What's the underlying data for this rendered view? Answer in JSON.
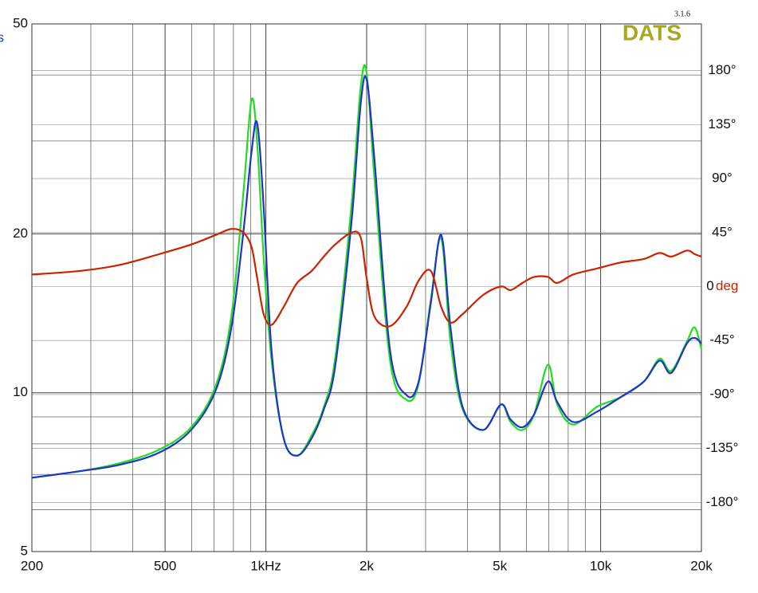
{
  "chart_data": {
    "type": "line",
    "brand": "DATS",
    "version": "3.1.6",
    "y_label": "s",
    "y2_label": "deg",
    "y2_label_color": "#cc2200",
    "y_label_color": "#2233cc",
    "brand_color": "#a8a820",
    "xscale": "log",
    "yscale": "log",
    "grid": true,
    "xlim": [
      200,
      20000
    ],
    "xticks": [
      200,
      500,
      {
        "value": 1000,
        "label": "1kHz"
      },
      {
        "value": 2000,
        "label": "2k"
      },
      {
        "value": 5000,
        "label": "5k"
      },
      {
        "value": 10000,
        "label": "10k"
      },
      {
        "value": 20000,
        "label": "20k"
      }
    ],
    "x_minor_grid": [
      300,
      400,
      600,
      700,
      800,
      900,
      3000,
      4000,
      6000,
      7000,
      8000,
      9000
    ],
    "ylim": [
      5,
      50
    ],
    "yticks": [
      5,
      10,
      20,
      50
    ],
    "y_minor_grid": [
      6,
      7,
      8,
      9,
      30,
      40
    ],
    "y2lim": [
      -221,
      219
    ],
    "y2ticks": [
      {
        "value": 180,
        "label": "180°"
      },
      {
        "value": 135,
        "label": "135°"
      },
      {
        "value": 90,
        "label": "90°"
      },
      {
        "value": 45,
        "label": "45°"
      },
      0,
      {
        "value": -45,
        "label": "-45°"
      },
      {
        "value": -90,
        "label": "-90°"
      },
      {
        "value": -135,
        "label": "-135°"
      },
      {
        "value": -180,
        "label": "-180°"
      }
    ],
    "x": [
      200,
      278,
      365,
      480,
      598,
      708,
      789,
      857,
      906,
      942,
      985,
      1040,
      1130,
      1240,
      1370,
      1490,
      1610,
      1800,
      1920,
      2000,
      2110,
      2350,
      2630,
      2860,
      3110,
      3340,
      3560,
      3870,
      4460,
      5040,
      5380,
      5840,
      6330,
      6960,
      7420,
      8280,
      9740,
      11450,
      13460,
      15000,
      16250,
      18100,
      19100,
      20000
    ],
    "series": [
      {
        "color": "#22dd22",
        "values": [
          6.9,
          7.1,
          7.35,
          7.8,
          8.6,
          10.3,
          14.0,
          24.0,
          35.9,
          29.7,
          18.0,
          11.5,
          8.2,
          7.6,
          8.3,
          9.4,
          11.6,
          22.5,
          38.0,
          40.3,
          25.5,
          11.5,
          9.7,
          10.4,
          15.0,
          19.6,
          12.5,
          9.3,
          8.5,
          9.5,
          8.8,
          8.5,
          9.1,
          11.3,
          9.5,
          8.7,
          9.4,
          9.8,
          10.5,
          11.6,
          11.0,
          12.5,
          13.3,
          12.1
        ]
      },
      {
        "color": "#2233cc",
        "values": [
          6.9,
          7.1,
          7.3,
          7.7,
          8.5,
          10.1,
          13.3,
          20.2,
          28.6,
          32.4,
          22.5,
          12.0,
          8.2,
          7.6,
          8.2,
          9.3,
          11.2,
          20.9,
          35.3,
          39.2,
          27.7,
          12.0,
          9.9,
          10.5,
          14.8,
          19.9,
          13.3,
          9.4,
          8.5,
          9.5,
          8.9,
          8.6,
          9.1,
          10.5,
          9.6,
          8.8,
          9.2,
          9.8,
          10.5,
          11.5,
          10.9,
          12.4,
          12.7,
          12.4
        ]
      },
      {
        "color": "#cc2200",
        "axis": "y2",
        "values": [
          10,
          13,
          18,
          27,
          35,
          43,
          48,
          45,
          33,
          7,
          -23,
          -32,
          -17,
          3,
          13,
          25,
          35,
          45,
          41,
          7,
          -25,
          -33,
          -17,
          5,
          13,
          -17,
          -30,
          -23,
          -7,
          0,
          -3,
          3,
          8,
          8,
          3,
          10,
          15,
          20,
          23,
          28,
          25,
          30,
          27,
          25
        ]
      }
    ]
  }
}
